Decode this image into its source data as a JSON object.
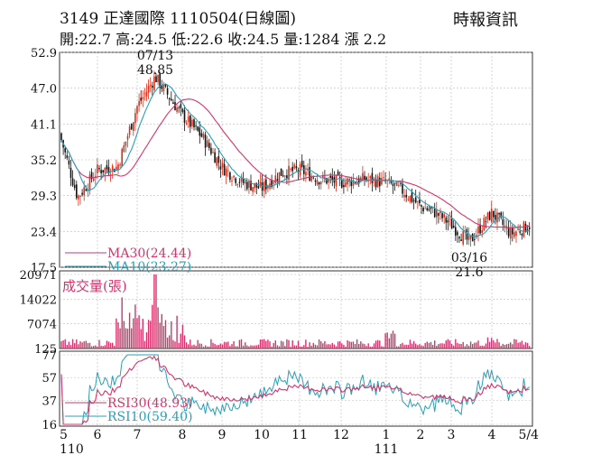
{
  "header": {
    "title": "3149  正達國際 1110504(日線圖)",
    "source": "時報資訊",
    "ohlc": "開:22.7 高:24.5 低:22.6 收:24.5 量:1284 漲 2.2"
  },
  "chart_data": [
    {
      "id": "price",
      "type": "candlestick",
      "y_ticks": [
        "52.9",
        "47.0",
        "41.1",
        "35.2",
        "29.3",
        "23.4",
        "17.5"
      ],
      "ylim": [
        17.5,
        52.9
      ],
      "x_ticks": [
        "5",
        "6",
        "7",
        "8",
        "9",
        "10",
        "11",
        "12",
        "1",
        "2",
        "3",
        "4",
        "5/4"
      ],
      "year_labels": [
        "110",
        "111"
      ],
      "annotations": [
        {
          "date": "07/13",
          "value": "48.85"
        },
        {
          "date": "03/16",
          "value": "21.6"
        }
      ],
      "legend": [
        {
          "label": "MA30(24.44)",
          "color": "#d6336c"
        },
        {
          "label": "MA10(23.27)",
          "color": "#2a9fb8"
        }
      ],
      "key_points": [
        {
          "x": "5",
          "close": 39.5
        },
        {
          "x": "5.5",
          "close": 29.0
        },
        {
          "x": "6",
          "close": 33.5
        },
        {
          "x": "6.5",
          "close": 34.0
        },
        {
          "x": "7",
          "close": 44.0
        },
        {
          "x": "07/13",
          "close": 48.85
        },
        {
          "x": "8",
          "close": 42.5
        },
        {
          "x": "8.5",
          "close": 39.0
        },
        {
          "x": "9",
          "close": 34.0
        },
        {
          "x": "9.5",
          "close": 31.5
        },
        {
          "x": "10",
          "close": 30.5
        },
        {
          "x": "10.5",
          "close": 33.0
        },
        {
          "x": "11",
          "close": 33.5
        },
        {
          "x": "11.5",
          "close": 32.0
        },
        {
          "x": "12",
          "close": 31.5
        },
        {
          "x": "12.5",
          "close": 32.0
        },
        {
          "x": "1",
          "close": 31.5
        },
        {
          "x": "1.5",
          "close": 30.0
        },
        {
          "x": "2",
          "close": 27.5
        },
        {
          "x": "2.5",
          "close": 26.5
        },
        {
          "x": "3",
          "close": 24.5
        },
        {
          "x": "03/16",
          "close": 21.6
        },
        {
          "x": "4",
          "close": 26.5
        },
        {
          "x": "4.5",
          "close": 23.0
        },
        {
          "x": "5/4",
          "close": 24.5
        }
      ]
    },
    {
      "id": "volume",
      "type": "bar",
      "title": "成交量(張)",
      "y_ticks": [
        "20971",
        "14022",
        "7074",
        "125"
      ],
      "ylim": [
        125,
        20971
      ],
      "color": "#d6336c"
    },
    {
      "id": "rsi",
      "type": "line",
      "y_ticks": [
        "77",
        "57",
        "37",
        "16"
      ],
      "ylim": [
        16,
        77
      ],
      "legend": [
        {
          "label": "RSI30(48.93)",
          "color": "#d6336c"
        },
        {
          "label": "RSI10(59.40)",
          "color": "#2a9fb8"
        }
      ]
    }
  ]
}
